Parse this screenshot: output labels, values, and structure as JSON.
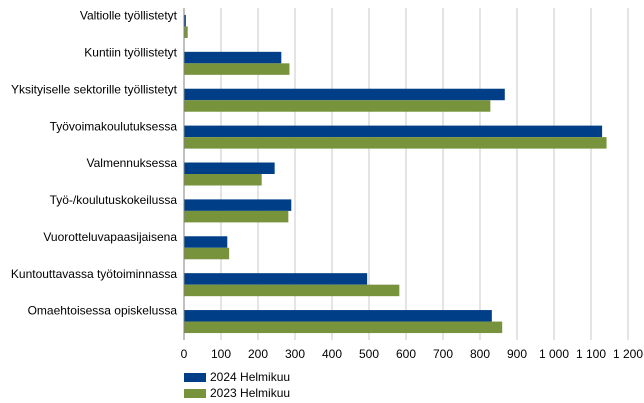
{
  "chart_data": {
    "type": "bar",
    "orientation": "horizontal",
    "categories": [
      "Valtiolle työllistetyt",
      "Kuntiin työllistetyt",
      "Yksityiselle sektorille työllistetyt",
      "Työvoimakoulutuksessa",
      "Valmennuksessa",
      "Työ-/koulutuskokeilussa",
      "Vuorotteluvapaasijaisena",
      "Kuntouttavassa työtoiminnassa",
      "Omaehtoisessa opiskelussa"
    ],
    "series": [
      {
        "name": "2024 Helmikuu",
        "color": "#003f87",
        "values": [
          5,
          263,
          867,
          1130,
          245,
          290,
          117,
          495,
          832
        ]
      },
      {
        "name": "2023 Helmikuu",
        "color": "#77933c",
        "values": [
          10,
          285,
          828,
          1142,
          210,
          282,
          122,
          582,
          860
        ]
      }
    ],
    "xlim": [
      0,
      1200
    ],
    "xticks": [
      0,
      100,
      200,
      300,
      400,
      500,
      600,
      700,
      800,
      900,
      1000,
      1100,
      1200
    ],
    "xtick_labels": [
      "0",
      "100",
      "200",
      "300",
      "400",
      "500",
      "600",
      "700",
      "800",
      "900",
      "1 000",
      "1 100",
      "1 200"
    ],
    "grid": "vertical",
    "legend": "bottom-left",
    "title": "",
    "xlabel": "",
    "ylabel": ""
  }
}
